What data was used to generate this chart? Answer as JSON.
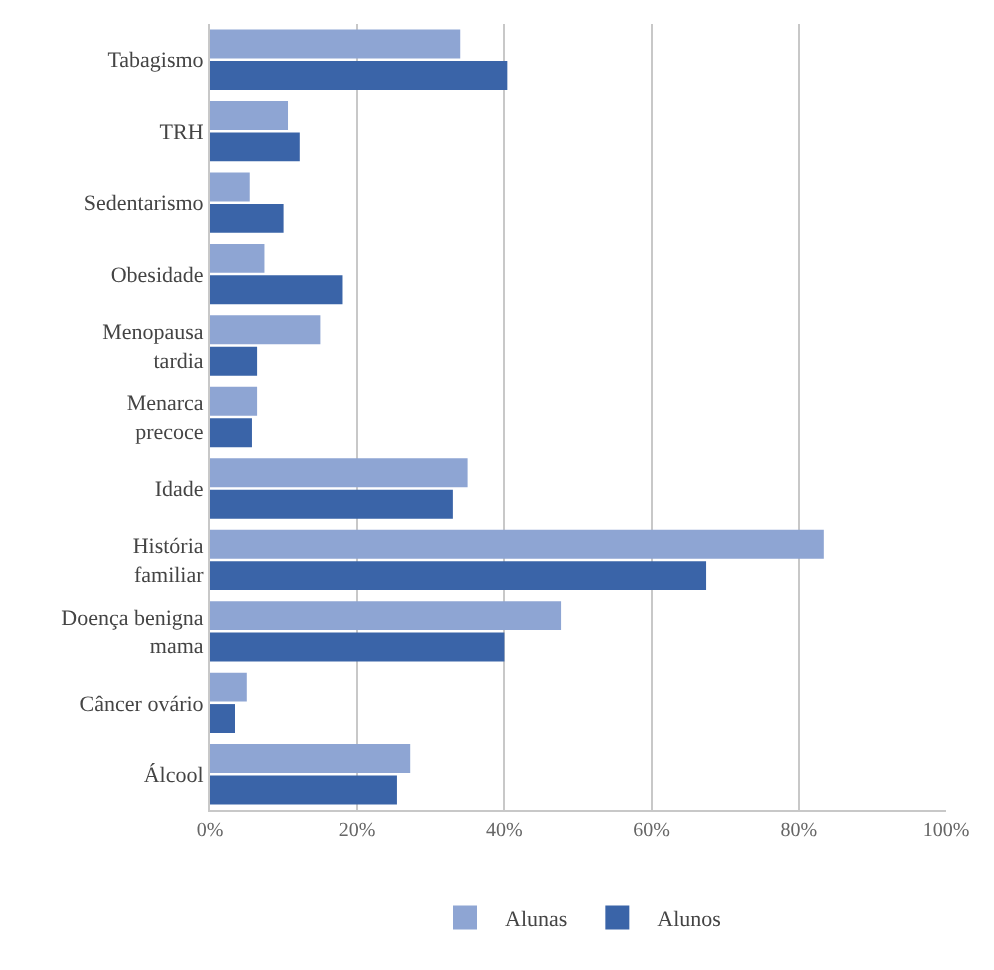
{
  "chart_data": {
    "type": "bar",
    "orientation": "horizontal",
    "categories": [
      "Tabagismo",
      "TRH",
      "Sedentarismo",
      "Obesidade",
      "Menopausa tardia",
      "Menarca precoce",
      "Idade",
      "História familiar",
      "Doença benigna mama",
      "Câncer ovário",
      "Álcool"
    ],
    "series": [
      {
        "name": "Alunas",
        "color": "#8ea5d3",
        "values": [
          34,
          10.6,
          5.4,
          7.4,
          15,
          6.4,
          35,
          83.4,
          47.7,
          5,
          27.2
        ]
      },
      {
        "name": "Alunos",
        "color": "#3a64a8",
        "values": [
          40.4,
          12.2,
          10,
          18,
          6.4,
          5.7,
          33,
          67.4,
          40,
          3.4,
          25.4
        ]
      }
    ],
    "xlim": [
      0,
      100
    ],
    "xticks": [
      {
        "value": 0,
        "label": "0%"
      },
      {
        "value": 20,
        "label": "20%"
      },
      {
        "value": 40,
        "label": "40%"
      },
      {
        "value": 60,
        "label": "60%"
      },
      {
        "value": 80,
        "label": "80%"
      },
      {
        "value": 100,
        "label": "100%"
      }
    ],
    "grid": "x",
    "legend": "bottom"
  }
}
